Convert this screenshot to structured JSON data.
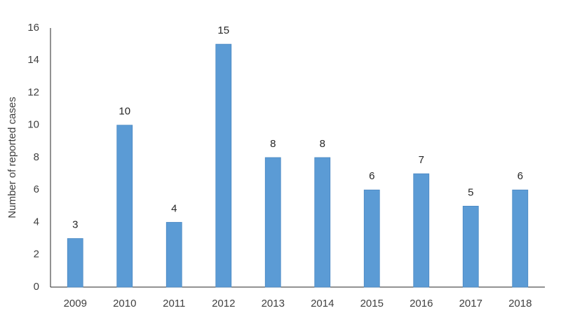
{
  "chart_data": {
    "type": "bar",
    "y_label": "Number of reported cases",
    "categories": [
      "2009",
      "2010",
      "2011",
      "2012",
      "2013",
      "2014",
      "2015",
      "2016",
      "2017",
      "2018"
    ],
    "values": [
      3,
      10,
      4,
      15,
      8,
      8,
      6,
      7,
      5,
      6
    ],
    "color": "#5b9bd5",
    "ylim": [
      0,
      16
    ],
    "yticks": [
      0,
      2,
      4,
      6,
      8,
      10,
      12,
      14,
      16
    ],
    "grid": false
  }
}
